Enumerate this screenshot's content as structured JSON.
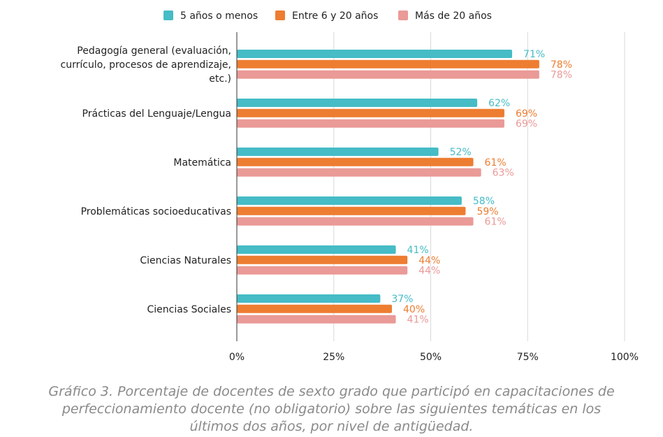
{
  "chart_data": {
    "type": "bar",
    "orientation": "horizontal",
    "categories": [
      [
        "Pedagogía general (evaluación,",
        "currículo, procesos de aprendizaje,",
        "etc.)"
      ],
      [
        "Prácticas del Lenguaje/Lengua"
      ],
      [
        "Matemática"
      ],
      [
        "Problemáticas socioeducativas"
      ],
      [
        "Ciencias Naturales"
      ],
      [
        "Ciencias Sociales"
      ]
    ],
    "series": [
      {
        "name": "5 años o menos",
        "color": "#45bcc6",
        "values": [
          71,
          62,
          52,
          58,
          41,
          37
        ]
      },
      {
        "name": "Entre 6 y 20 años",
        "color": "#ed7d31",
        "values": [
          78,
          69,
          61,
          59,
          44,
          40
        ]
      },
      {
        "name": "Más de 20 años",
        "color": "#ea9a97",
        "values": [
          78,
          69,
          63,
          61,
          44,
          41
        ]
      }
    ],
    "value_suffix": "%",
    "xlim": [
      0,
      100
    ],
    "xticks": [
      0,
      25,
      50,
      75,
      100
    ],
    "xtick_labels": [
      "0%",
      "25%",
      "50%",
      "75%",
      "100%"
    ],
    "grid": true,
    "legend_position": "top",
    "title": "",
    "xlabel": "",
    "ylabel": ""
  },
  "caption": {
    "lines": [
      "Gráfico 3. Porcentaje de docentes de sexto grado que participó en capacitaciones de",
      "perfeccionamiento docente (no obligatorio)  sobre las siguientes temáticas en los",
      "últimos dos años, por nivel de antigüedad."
    ]
  }
}
